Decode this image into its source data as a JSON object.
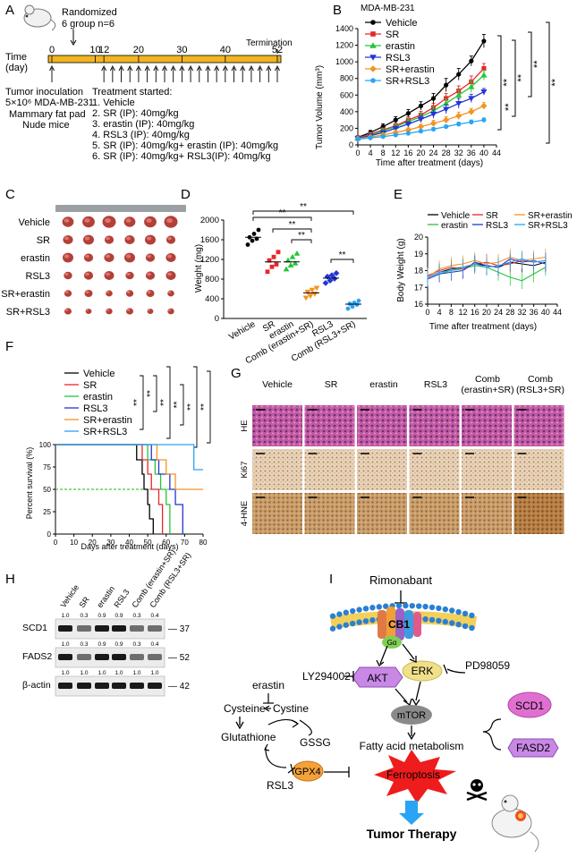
{
  "panels": {
    "A": {
      "letter": "A",
      "randomized": "Randomized",
      "groups": "6 group n=6",
      "time_label": "Time",
      "day_label": "(day)",
      "ticks": [
        "0",
        "10",
        "12",
        "20",
        "30",
        "40",
        "52"
      ],
      "termination": "Termination",
      "left_lines": [
        "Tumor inoculation",
        "5×10⁶ MDA-MB-231",
        "Mammary fat pad",
        "Nude mice"
      ],
      "treatment_header": "Treatment started:",
      "treatments": [
        "1. Vehicle",
        "2. SR (IP): 40mg/kg",
        "3. erastin (IP): 40mg/kg",
        "4. RSL3 (IP): 40mg/kg",
        "5. SR (IP): 40mg/kg+ erastin (IP): 40mg/kg",
        "6. SR (IP): 40mg/kg+ RSL3(IP): 40mg/kg"
      ]
    },
    "B": {
      "letter": "B",
      "title": "MDA-MB-231",
      "xlabel": "Time after treatment (days)",
      "ylabel": "Tumor Volume (mm³)",
      "sig": "**"
    },
    "C": {
      "letter": "C",
      "rows": [
        "Vehicle",
        "SR",
        "erastin",
        "RSL3",
        "SR+erastin",
        "SR+RSL3"
      ]
    },
    "D": {
      "letter": "D",
      "ylabel": "Weight (mg)",
      "sig": "**"
    },
    "E": {
      "letter": "E",
      "ylabel": "Body Weight (g)",
      "xlabel": "Time after treatment (days)"
    },
    "F": {
      "letter": "F",
      "ylabel": "Percent survival (%)",
      "xlabel": "Days after treatment (days)",
      "sig": "**"
    },
    "G": {
      "letter": "G",
      "columns": [
        "Vehicle",
        "SR",
        "erastin",
        "RSL3",
        "Comb\n(erastin+SR)",
        "Comb\n(RSL3+SR)"
      ],
      "rows": [
        "HE",
        "Ki67",
        "4-HNE"
      ]
    },
    "H": {
      "letter": "H",
      "lanes": [
        "Vehicle",
        "SR",
        "erastin",
        "RSL3",
        "Comb (erastin+SR)",
        "Comb (RSL3+SR)"
      ],
      "blots": [
        {
          "name": "SCD1",
          "kda": "37",
          "quant": [
            "1.0",
            "0.3",
            "0.9",
            "0.9",
            "0.3",
            "0.4"
          ]
        },
        {
          "name": "FADS2",
          "kda": "52",
          "quant": [
            "1.0",
            "0.3",
            "0.9",
            "0.9",
            "0.3",
            "0.4"
          ]
        },
        {
          "name": "β-actin",
          "kda": "42",
          "quant": [
            "1.0",
            "1.0",
            "1.0",
            "1.0",
            "1.0",
            "1.0"
          ]
        }
      ]
    },
    "I": {
      "letter": "I",
      "rimonabant": "Rimonabant",
      "cb1": "CB1",
      "galpha": "Gα",
      "akt": "AKT",
      "erk": "ERK",
      "ly": "LY294002",
      "pd": "PD98059",
      "mtor": "mTOR",
      "fam": "Fatty acid metabolism",
      "scd1": "SCD1",
      "fasd2": "FASD2",
      "erastin": "erastin",
      "cysteine": "Cysteine",
      "cystine": "Cystine",
      "glutathione": "Glutathione",
      "gssg": "GSSG",
      "gpx4": "GPX4",
      "rsl3": "RSL3",
      "ferroptosis": "Ferroptosis",
      "therapy": "Tumor Therapy"
    }
  },
  "chart_data": [
    {
      "panel": "B",
      "type": "line",
      "title": "MDA-MB-231",
      "xlabel": "Time after treatment (days)",
      "ylabel": "Tumor Volume (mm³)",
      "x": [
        0,
        4,
        8,
        12,
        16,
        20,
        24,
        28,
        32,
        36,
        40
      ],
      "xlim": [
        0,
        44
      ],
      "ylim": [
        0,
        1400
      ],
      "xticks": [
        0,
        4,
        8,
        12,
        16,
        20,
        24,
        28,
        32,
        36,
        40,
        44
      ],
      "yticks": [
        0,
        200,
        400,
        600,
        800,
        1000,
        1200,
        1400
      ],
      "series": [
        {
          "name": "Vehicle",
          "color": "#000000",
          "marker": "circle",
          "values": [
            90,
            150,
            220,
            300,
            380,
            470,
            560,
            720,
            850,
            1010,
            1250
          ],
          "err": [
            20,
            25,
            35,
            40,
            45,
            50,
            60,
            80,
            70,
            60,
            80
          ]
        },
        {
          "name": "SR",
          "color": "#e8262a",
          "marker": "square",
          "values": [
            85,
            130,
            180,
            230,
            300,
            360,
            450,
            560,
            650,
            760,
            920
          ],
          "err": [
            15,
            20,
            25,
            30,
            40,
            45,
            50,
            60,
            60,
            70,
            60
          ]
        },
        {
          "name": "erastin",
          "color": "#27c43a",
          "marker": "triangle",
          "values": [
            80,
            120,
            170,
            220,
            280,
            340,
            410,
            500,
            600,
            700,
            840
          ],
          "err": [
            15,
            20,
            25,
            30,
            40,
            45,
            50,
            55,
            60,
            70,
            60
          ]
        },
        {
          "name": "RSL3",
          "color": "#2435d6",
          "marker": "tri-down",
          "values": [
            80,
            110,
            150,
            200,
            250,
            310,
            370,
            430,
            500,
            560,
            640
          ],
          "err": [
            15,
            15,
            20,
            25,
            30,
            40,
            50,
            55,
            60,
            50,
            40
          ]
        },
        {
          "name": "SR+erastin",
          "color": "#f39423",
          "marker": "diamond",
          "values": [
            75,
            95,
            120,
            150,
            180,
            220,
            260,
            300,
            350,
            400,
            470
          ],
          "err": [
            10,
            15,
            20,
            20,
            25,
            30,
            35,
            40,
            45,
            40,
            40
          ]
        },
        {
          "name": "SR+RSL3",
          "color": "#2aa4f4",
          "marker": "circle",
          "values": [
            70,
            85,
            100,
            120,
            140,
            165,
            190,
            220,
            250,
            275,
            300
          ],
          "err": [
            10,
            10,
            15,
            15,
            15,
            20,
            20,
            20,
            25,
            25,
            25
          ]
        }
      ]
    },
    {
      "panel": "D",
      "type": "scatter",
      "ylabel": "Weight (mg)",
      "categories": [
        "Vehicle",
        "SR",
        "erastin",
        "Comb (erastin+SR)",
        "RSL3",
        "Comb (RSL3+SR)"
      ],
      "ylim": [
        0,
        2000
      ],
      "yticks": [
        0,
        400,
        800,
        1200,
        1600,
        2000
      ],
      "colors": [
        "#000000",
        "#e8262a",
        "#27c43a",
        "#f39423",
        "#2435d6",
        "#2aa4f4"
      ],
      "means": [
        1650,
        1150,
        1150,
        520,
        820,
        290
      ],
      "points": [
        [
          1500,
          1580,
          1620,
          1650,
          1720,
          1800
        ],
        [
          950,
          1050,
          1100,
          1180,
          1250,
          1350
        ],
        [
          1000,
          1080,
          1120,
          1180,
          1250,
          1320
        ],
        [
          420,
          460,
          500,
          540,
          580,
          620
        ],
        [
          720,
          770,
          810,
          850,
          880,
          920
        ],
        [
          200,
          240,
          280,
          300,
          320,
          360
        ]
      ]
    },
    {
      "panel": "E",
      "type": "line",
      "ylabel": "Body Weight (g)",
      "xlabel": "Time after treatment (days)",
      "x": [
        0,
        4,
        8,
        12,
        16,
        20,
        24,
        28,
        32,
        36,
        40
      ],
      "xlim": [
        0,
        44
      ],
      "ylim": [
        16,
        20
      ],
      "xticks": [
        0,
        4,
        8,
        12,
        16,
        20,
        24,
        28,
        32,
        36,
        40,
        44
      ],
      "yticks": [
        16,
        17,
        18,
        19,
        20
      ],
      "series": [
        {
          "name": "Vehicle",
          "color": "#000000",
          "values": [
            17.6,
            17.9,
            18.1,
            18.2,
            18.4,
            18.3,
            18.2,
            18.5,
            18.4,
            18.3,
            18.5
          ]
        },
        {
          "name": "erastin",
          "color": "#27c43a",
          "values": [
            17.5,
            17.8,
            18.0,
            18.1,
            18.3,
            18.2,
            17.9,
            17.6,
            17.4,
            17.8,
            18.2
          ]
        },
        {
          "name": "SR",
          "color": "#e8262a",
          "values": [
            17.7,
            18.0,
            18.2,
            18.1,
            18.4,
            18.5,
            18.3,
            18.4,
            18.6,
            18.5,
            18.6
          ]
        },
        {
          "name": "RSL3",
          "color": "#2435d6",
          "values": [
            17.5,
            17.8,
            17.9,
            18.0,
            18.5,
            18.3,
            18.2,
            18.7,
            18.5,
            18.6,
            18.4
          ]
        },
        {
          "name": "SR+erastin",
          "color": "#f39423",
          "values": [
            17.6,
            18.1,
            18.3,
            18.4,
            18.6,
            18.4,
            18.5,
            18.8,
            18.6,
            18.7,
            18.8
          ]
        },
        {
          "name": "SR+RSL3",
          "color": "#2aa4f4",
          "values": [
            17.6,
            17.9,
            18.0,
            18.2,
            18.4,
            18.2,
            18.3,
            18.5,
            18.7,
            18.5,
            18.6
          ]
        }
      ]
    },
    {
      "panel": "F",
      "type": "line",
      "ylabel": "Percent survival (%)",
      "xlabel": "Days after treatment (days)",
      "xlim": [
        0,
        80
      ],
      "ylim": [
        0,
        100
      ],
      "xticks": [
        0,
        10,
        20,
        30,
        40,
        50,
        60,
        70,
        80
      ],
      "yticks": [
        0,
        25,
        50,
        75,
        100
      ],
      "series": [
        {
          "name": "Vehicle",
          "color": "#000000",
          "steps": [
            [
              0,
              100
            ],
            [
              44,
              100
            ],
            [
              44,
              83
            ],
            [
              47,
              83
            ],
            [
              47,
              67
            ],
            [
              48,
              67
            ],
            [
              48,
              50
            ],
            [
              50,
              50
            ],
            [
              50,
              33
            ],
            [
              51,
              33
            ],
            [
              51,
              17
            ],
            [
              53,
              17
            ],
            [
              53,
              0
            ]
          ]
        },
        {
          "name": "SR",
          "color": "#e8262a",
          "steps": [
            [
              0,
              100
            ],
            [
              47,
              100
            ],
            [
              47,
              83
            ],
            [
              50,
              83
            ],
            [
              50,
              67
            ],
            [
              52,
              67
            ],
            [
              52,
              50
            ],
            [
              56,
              50
            ],
            [
              56,
              33
            ],
            [
              58,
              33
            ],
            [
              58,
              0
            ]
          ]
        },
        {
          "name": "erastin",
          "color": "#27c43a",
          "steps": [
            [
              0,
              100
            ],
            [
              50,
              100
            ],
            [
              50,
              83
            ],
            [
              54,
              83
            ],
            [
              54,
              67
            ],
            [
              57,
              67
            ],
            [
              57,
              50
            ],
            [
              60,
              50
            ],
            [
              60,
              33
            ],
            [
              62,
              33
            ],
            [
              62,
              0
            ]
          ]
        },
        {
          "name": "RSL3",
          "color": "#2435d6",
          "steps": [
            [
              0,
              100
            ],
            [
              52,
              100
            ],
            [
              52,
              83
            ],
            [
              56,
              83
            ],
            [
              56,
              67
            ],
            [
              62,
              67
            ],
            [
              62,
              50
            ],
            [
              65,
              50
            ],
            [
              65,
              33
            ],
            [
              69,
              33
            ],
            [
              69,
              0
            ]
          ]
        },
        {
          "name": "SR+erastin",
          "color": "#f39423",
          "steps": [
            [
              0,
              100
            ],
            [
              55,
              100
            ],
            [
              55,
              83
            ],
            [
              60,
              83
            ],
            [
              60,
              67
            ],
            [
              65,
              67
            ],
            [
              65,
              50
            ],
            [
              80,
              50
            ]
          ]
        },
        {
          "name": "SR+RSL3",
          "color": "#2aa4f4",
          "steps": [
            [
              0,
              100
            ],
            [
              75,
              100
            ],
            [
              75,
              72
            ],
            [
              80,
              72
            ]
          ]
        }
      ]
    }
  ]
}
